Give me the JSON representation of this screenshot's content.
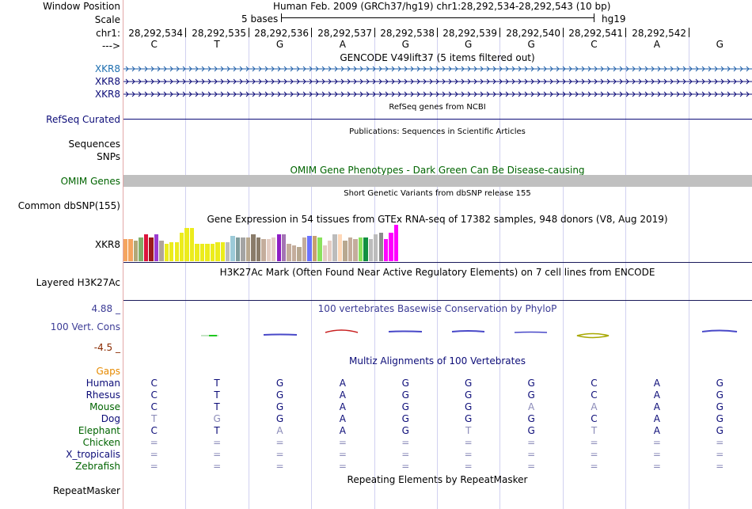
{
  "header": {
    "window_position_label": "Window Position",
    "window_position_text": "Human Feb. 2009 (GRCh37/hg19)   chr1:28,292,534-28,292,543 (10 bp)",
    "scale_label": "Scale",
    "scale_text": "5 bases",
    "assembly": "hg19",
    "chrom_label": "chr1:",
    "strand_label": "--->"
  },
  "positions": [
    "28,292,534",
    "28,292,535",
    "28,292,536",
    "28,292,537",
    "28,292,538",
    "28,292,539",
    "28,292,540",
    "28,292,541",
    "28,292,542"
  ],
  "sequence": [
    "C",
    "T",
    "G",
    "A",
    "G",
    "G",
    "G",
    "C",
    "A",
    "G"
  ],
  "tracks": {
    "gencode": {
      "title": "GENCODE V49lift37 (5 items filtered out)",
      "items": [
        "XKR8",
        "XKR8",
        "XKR8"
      ]
    },
    "refseq": {
      "title": "RefSeq genes from NCBI",
      "label": "RefSeq Curated"
    },
    "publications": {
      "title": "Publications: Sequences in Scientific Articles",
      "labels": [
        "Sequences",
        "SNPs"
      ]
    },
    "omim": {
      "title": "OMIM Gene Phenotypes - Dark Green Can Be Disease-causing",
      "label": "OMIM Genes"
    },
    "dbsnp": {
      "title": "Short Genetic Variants from dbSNP release 155",
      "label": "Common dbSNP(155)"
    },
    "gtex": {
      "title": "Gene Expression in 54 tissues from GTEx RNA-seq of 17382 samples, 948 donors (V8, Aug 2019)",
      "label": "XKR8"
    },
    "h3k27ac": {
      "title": "H3K27Ac Mark (Often Found Near Active Regulatory Elements) on 7 cell lines from ENCODE",
      "label": "Layered H3K27Ac"
    },
    "cons": {
      "title": "100 vertebrates Basewise Conservation by PhyloP",
      "label": "100 Vert. Cons",
      "max": "4.88 _",
      "min": "-4.5 _"
    },
    "multiz": {
      "title": "Multiz Alignments of 100 Vertebrates",
      "gaps_label": "Gaps"
    },
    "repeatmasker": {
      "title": "Repeating Elements by RepeatMasker",
      "label": "RepeatMasker"
    }
  },
  "alignments": [
    {
      "species": "Human",
      "bases": [
        "C",
        "T",
        "G",
        "A",
        "G",
        "G",
        "G",
        "C",
        "A",
        "G"
      ]
    },
    {
      "species": "Rhesus",
      "bases": [
        "C",
        "T",
        "G",
        "A",
        "G",
        "G",
        "G",
        "C",
        "A",
        "G"
      ]
    },
    {
      "species": "Mouse",
      "bases": [
        "C",
        "T",
        "G",
        "A",
        "G",
        "G",
        "A",
        "A",
        "A",
        "G"
      ]
    },
    {
      "species": "Dog",
      "bases": [
        "T",
        "G",
        "G",
        "A",
        "G",
        "G",
        "G",
        "C",
        "A",
        "G"
      ]
    },
    {
      "species": "Elephant",
      "bases": [
        "C",
        "T",
        "A",
        "A",
        "G",
        "T",
        "G",
        "T",
        "A",
        "G"
      ]
    },
    {
      "species": "Chicken",
      "bases": [
        "=",
        "=",
        "=",
        "=",
        "=",
        "=",
        "=",
        "=",
        "=",
        "="
      ]
    },
    {
      "species": "X_tropicalis",
      "bases": [
        "=",
        "=",
        "=",
        "=",
        "=",
        "=",
        "=",
        "=",
        "=",
        "="
      ]
    },
    {
      "species": "Zebrafish",
      "bases": [
        "=",
        "=",
        "=",
        "=",
        "=",
        "=",
        "=",
        "=",
        "=",
        "="
      ]
    }
  ],
  "gtex_values": [
    28,
    28,
    26,
    30,
    34,
    30,
    34,
    26,
    22,
    24,
    24,
    36,
    42,
    42,
    22,
    22,
    22,
    22,
    24,
    24,
    24,
    32,
    30,
    30,
    30,
    34,
    30,
    28,
    28,
    30,
    34,
    34,
    22,
    20,
    18,
    30,
    32,
    32,
    30,
    20,
    26,
    34,
    34,
    26,
    30,
    28,
    30,
    30,
    28,
    34,
    36,
    28,
    36,
    46
  ],
  "gtex_colors": [
    "#f4a460",
    "#f4a460",
    "#b2a878",
    "#82b06a",
    "#dc143c",
    "#9b1b1b",
    "#9b3bd0",
    "#b0a49a",
    "#ecec1c",
    "#ecec1c",
    "#ecec1c",
    "#ecec1c",
    "#ecec1c",
    "#ecec1c",
    "#ecec1c",
    "#ecec1c",
    "#ecec1c",
    "#ecec1c",
    "#ecec1c",
    "#ecec1c",
    "#bcbcbc",
    "#9ccad8",
    "#7f9c9c",
    "#a4a4a4",
    "#b8a890",
    "#8a7c6a",
    "#8a7c6a",
    "#c4ad9c",
    "#e4cdc4",
    "#e4cdc4",
    "#8e1ec4",
    "#a474b4",
    "#c4ad9c",
    "#c4ad9c",
    "#b8a890",
    "#c4ad9c",
    "#6a72ff",
    "#c8a070",
    "#8ae25c",
    "#e4cdc4",
    "#e4cdc4",
    "#bcbcbc",
    "#ffd8b8",
    "#b8a890",
    "#c4ad9c",
    "#c4ad9c",
    "#8ae25c",
    "#109040",
    "#bcbcbc",
    "#bcbcbc",
    "#8c8c8c",
    "#ff00ff",
    "#ff00ff",
    "#ff00ff"
  ],
  "colors": {
    "gencode_blue": "#1e5ea8",
    "refseq_navy": "#0c0c78",
    "omim_green": "#006400",
    "cons_label": "#3c3c96",
    "cons_min": "#8a2a00",
    "gaps_orange": "#e68a00",
    "grid_line": "#d0d0f0"
  }
}
